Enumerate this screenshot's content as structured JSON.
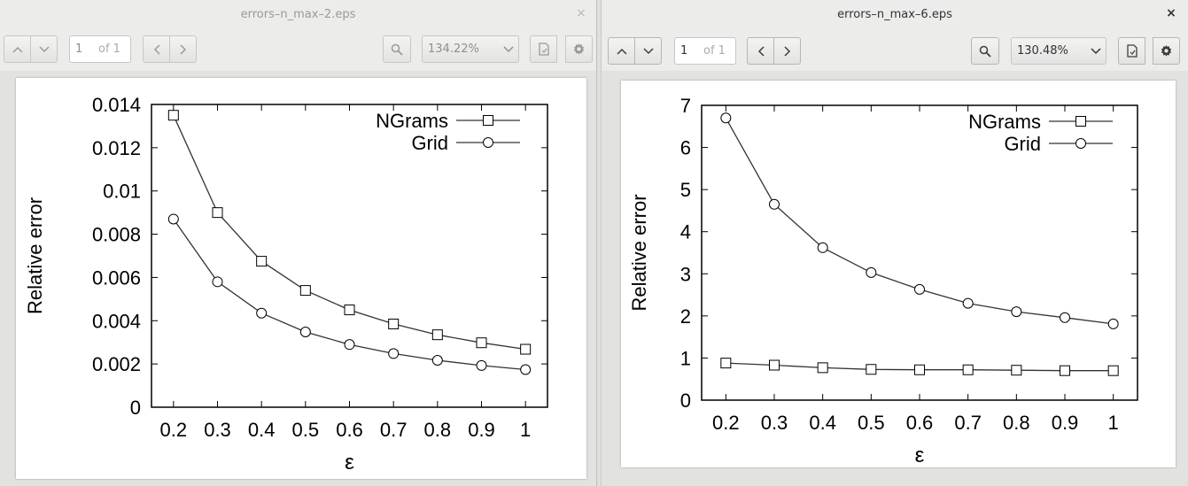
{
  "windows": [
    {
      "id": "left",
      "title": "errors–n_max–2.eps",
      "close_glyph": "×",
      "page_current": "1",
      "page_total": "of 1",
      "zoom": "134.22%",
      "active": false,
      "chart_data": {
        "type": "line",
        "xlabel": "ε",
        "ylabel": "Relative error",
        "x": [
          0.2,
          0.3,
          0.4,
          0.5,
          0.6,
          0.7,
          0.8,
          0.9,
          1
        ],
        "xticks": [
          "0.2",
          "0.3",
          "0.4",
          "0.5",
          "0.6",
          "0.7",
          "0.8",
          "0.9",
          "1"
        ],
        "yticks": [
          "0",
          "0.002",
          "0.004",
          "0.006",
          "0.008",
          "0.01",
          "0.012",
          "0.014"
        ],
        "ylim": [
          0,
          0.014
        ],
        "xlim": [
          0.15,
          1.05
        ],
        "legend_position": "top-right",
        "grid": false,
        "series": [
          {
            "name": "NGrams",
            "marker": "square",
            "values": [
              0.0135,
              0.009,
              0.00675,
              0.0054,
              0.0045,
              0.00385,
              0.00335,
              0.00298,
              0.00268
            ]
          },
          {
            "name": "Grid",
            "marker": "circle",
            "values": [
              0.0087,
              0.0058,
              0.00435,
              0.00348,
              0.0029,
              0.00248,
              0.00217,
              0.00193,
              0.00174
            ]
          }
        ]
      }
    },
    {
      "id": "right",
      "title": "errors–n_max–6.eps",
      "close_glyph": "×",
      "page_current": "1",
      "page_total": "of 1",
      "zoom": "130.48%",
      "active": true,
      "chart_data": {
        "type": "line",
        "xlabel": "ε",
        "ylabel": "Relative error",
        "x": [
          0.2,
          0.3,
          0.4,
          0.5,
          0.6,
          0.7,
          0.8,
          0.9,
          1
        ],
        "xticks": [
          "0.2",
          "0.3",
          "0.4",
          "0.5",
          "0.6",
          "0.7",
          "0.8",
          "0.9",
          "1"
        ],
        "yticks": [
          "0",
          "1",
          "2",
          "3",
          "4",
          "5",
          "6",
          "7"
        ],
        "ylim": [
          0,
          7
        ],
        "xlim": [
          0.15,
          1.05
        ],
        "legend_position": "top-right",
        "grid": false,
        "series": [
          {
            "name": "NGrams",
            "marker": "square",
            "values": [
              0.88,
              0.83,
              0.77,
              0.73,
              0.72,
              0.72,
              0.71,
              0.7,
              0.7
            ]
          },
          {
            "name": "Grid",
            "marker": "circle",
            "values": [
              6.7,
              4.65,
              3.62,
              3.03,
              2.63,
              2.3,
              2.1,
              1.96,
              1.81
            ]
          }
        ]
      }
    }
  ]
}
